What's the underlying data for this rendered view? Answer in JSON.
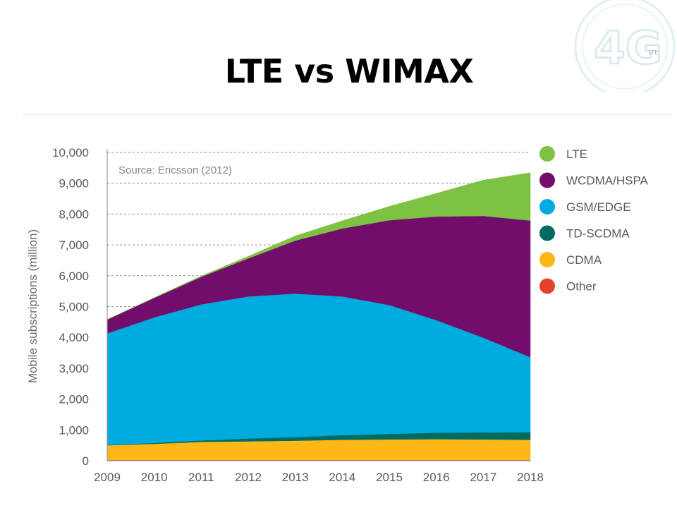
{
  "slide": {
    "title": "LTE vs WIMAX",
    "logo": {
      "icon": "4g-lte-logo-icon",
      "text": "4G",
      "badge": "LTE"
    }
  },
  "chart_data": {
    "type": "area",
    "stacked": true,
    "x": [
      "2009",
      "2010",
      "2011",
      "2012",
      "2013",
      "2014",
      "2015",
      "2016",
      "2017",
      "2018"
    ],
    "ylabel": "Mobile subscriptions (million)",
    "ylim": [
      0,
      10000
    ],
    "yticks": [
      0,
      1000,
      2000,
      3000,
      4000,
      5000,
      6000,
      7000,
      8000,
      9000,
      10000
    ],
    "ytick_labels": [
      "0",
      "1,000",
      "2,000",
      "3,000",
      "4,000",
      "5,000",
      "6,000",
      "7,000",
      "8,000",
      "9,000",
      "10,000"
    ],
    "grid": "horizontal-dashed",
    "legend_position": "right",
    "annotation": "Source: Ericsson (2012)",
    "series": [
      {
        "name": "Other",
        "color": "#e8412b",
        "values": [
          30,
          30,
          30,
          30,
          30,
          30,
          30,
          30,
          30,
          30
        ]
      },
      {
        "name": "CDMA",
        "color": "#fbb817",
        "values": [
          470,
          520,
          580,
          600,
          620,
          650,
          660,
          670,
          660,
          650
        ]
      },
      {
        "name": "TD-SCDMA",
        "color": "#006b60",
        "values": [
          10,
          30,
          50,
          90,
          120,
          150,
          180,
          210,
          230,
          250
        ]
      },
      {
        "name": "GSM/EDGE",
        "color": "#00abdf",
        "values": [
          3620,
          4070,
          4410,
          4610,
          4650,
          4500,
          4180,
          3650,
          3070,
          2430
        ]
      },
      {
        "name": "WCDMA/HSPA",
        "color": "#720d6b",
        "values": [
          450,
          630,
          890,
          1230,
          1720,
          2200,
          2750,
          3360,
          3950,
          4430
        ]
      },
      {
        "name": "LTE",
        "color": "#7dc242",
        "values": [
          0,
          10,
          30,
          70,
          150,
          250,
          450,
          750,
          1160,
          1550
        ]
      }
    ]
  }
}
